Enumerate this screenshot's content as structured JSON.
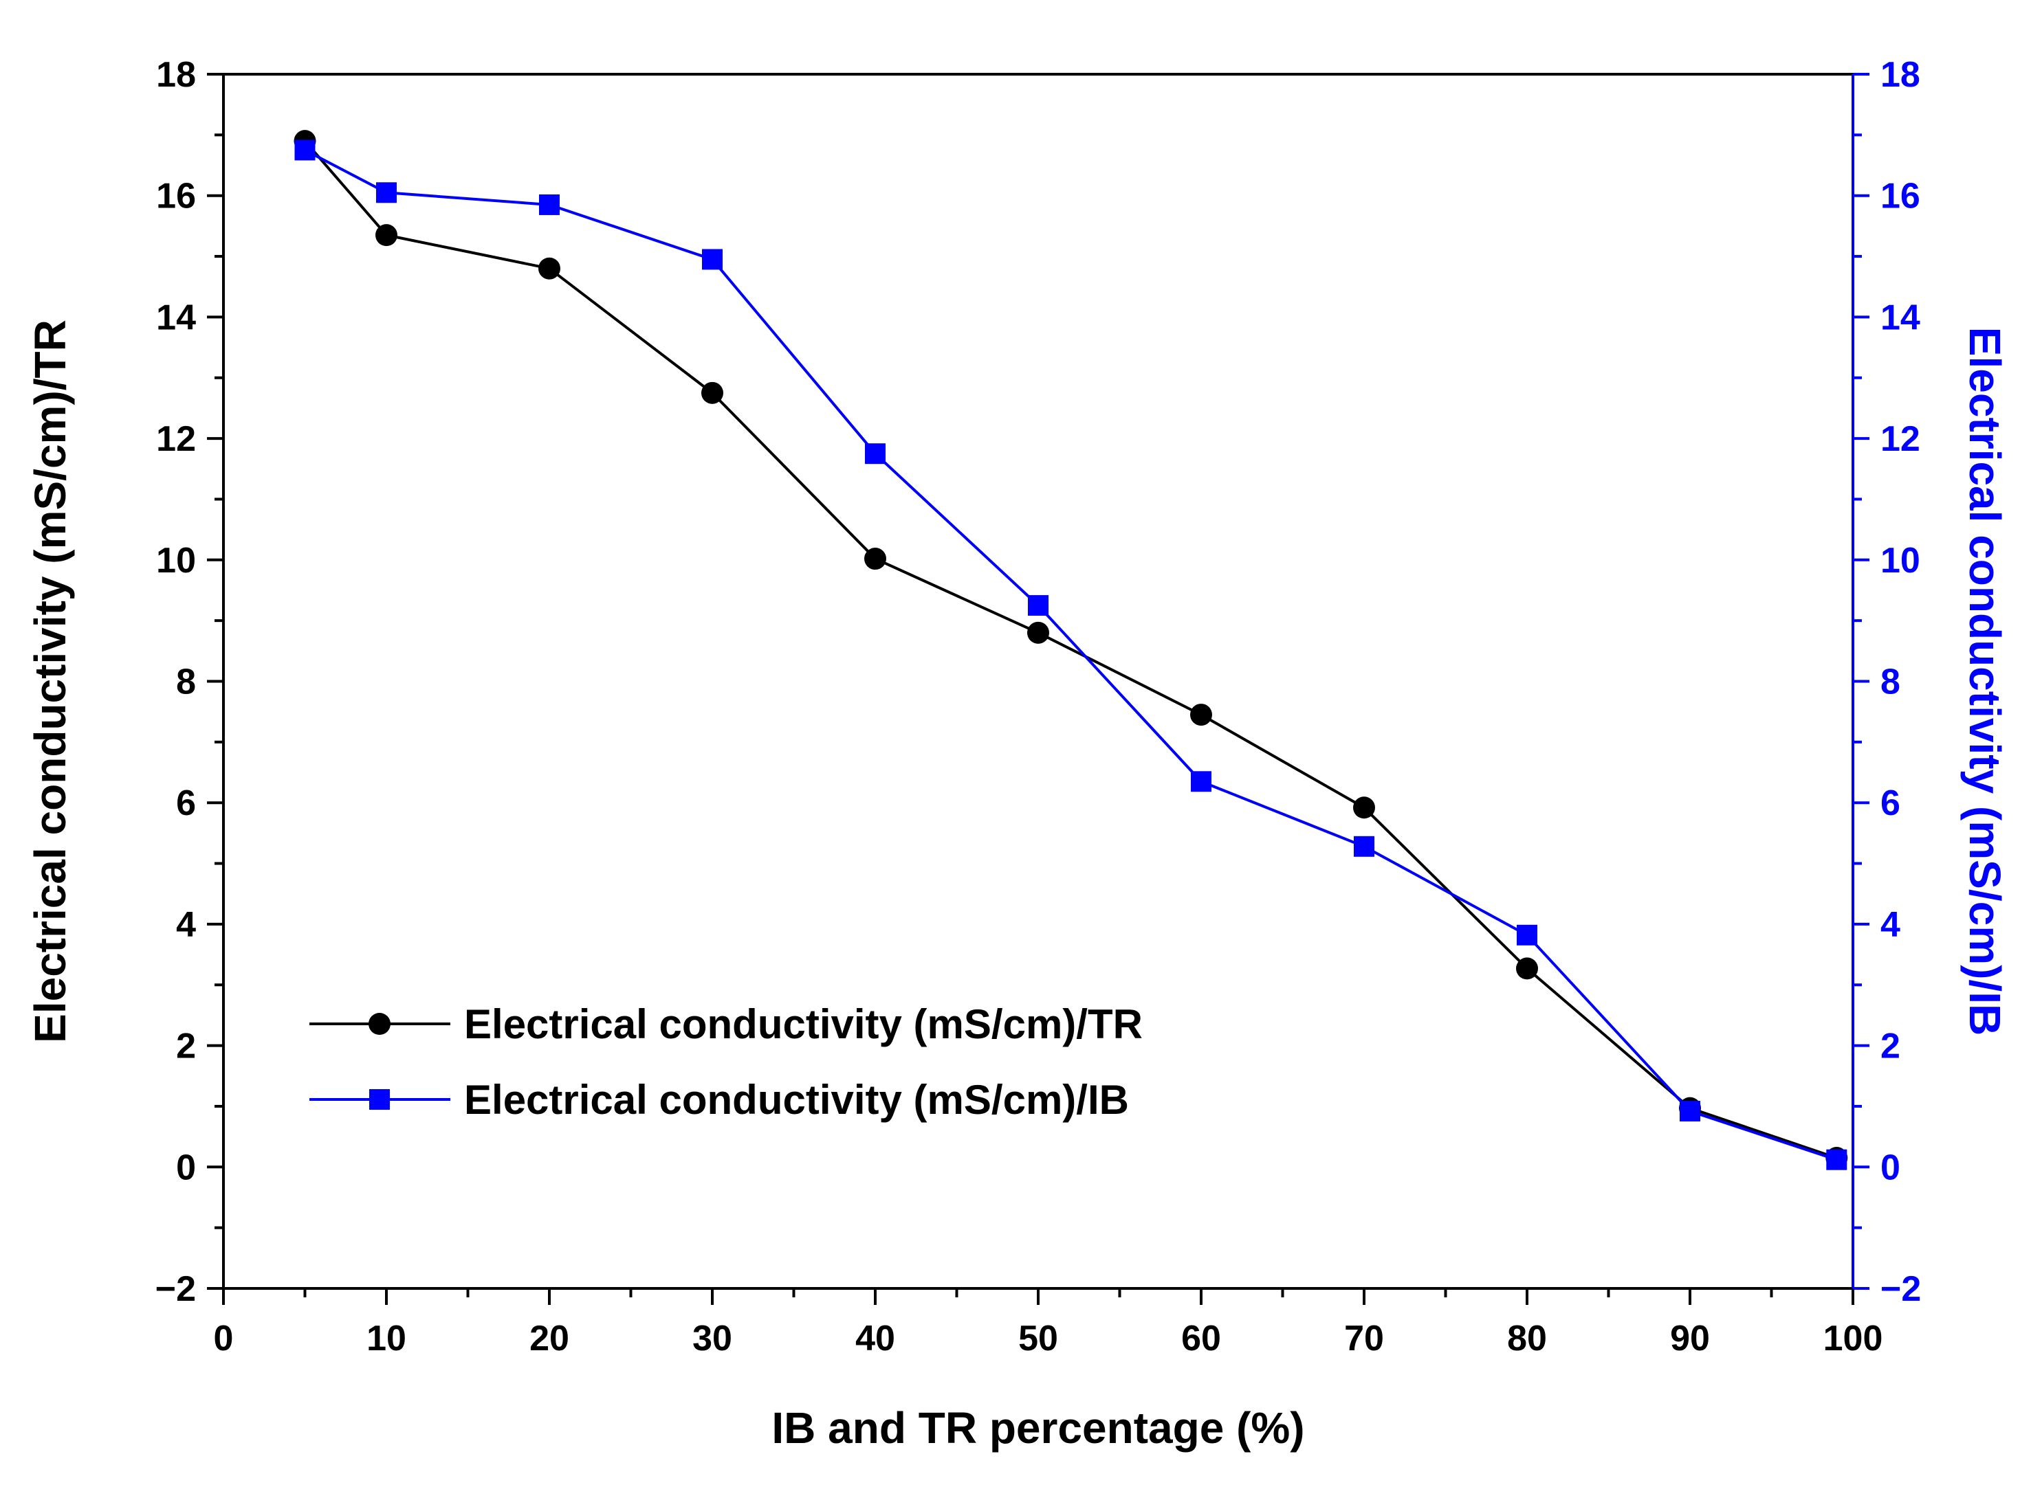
{
  "chart_data": {
    "type": "line",
    "x": [
      5,
      10,
      20,
      30,
      40,
      50,
      60,
      70,
      80,
      90,
      99
    ],
    "series": [
      {
        "name": "Electrical conductivity (mS/cm)/TR",
        "axis": "left",
        "marker": "circle",
        "color": "#000000",
        "values": [
          16.9,
          15.35,
          14.8,
          12.75,
          10.02,
          8.8,
          7.45,
          5.92,
          3.27,
          0.97,
          0.15
        ]
      },
      {
        "name": "Electrical conductivity (mS/cm)/IB",
        "axis": "right",
        "marker": "square",
        "color": "#0000FF",
        "values": [
          16.75,
          16.05,
          15.85,
          14.95,
          11.75,
          9.25,
          6.35,
          5.28,
          3.82,
          0.92,
          0.12
        ]
      }
    ],
    "xlabel": "IB and TR percentage (%)",
    "ylabel_left": "Electrical conductivity (mS/cm)/TR",
    "ylabel_right": "Electrical conductivity (mS/cm)/IB",
    "xlim": [
      0,
      100
    ],
    "ylim_left": [
      -2,
      18
    ],
    "ylim_right": [
      -2,
      18
    ],
    "x_ticks": [
      "0",
      "10",
      "20",
      "30",
      "40",
      "50",
      "60",
      "70",
      "80",
      "90",
      "100"
    ],
    "y_ticks_left": [
      "−2",
      "0",
      "2",
      "4",
      "6",
      "8",
      "10",
      "12",
      "14",
      "16",
      "18"
    ],
    "y_ticks_right": [
      "−2",
      "0",
      "2",
      "4",
      "6",
      "8",
      "10",
      "12",
      "14",
      "16",
      "18"
    ],
    "grid": false,
    "legend_position": "lower-left",
    "axis_color_right": "#0000FF"
  }
}
